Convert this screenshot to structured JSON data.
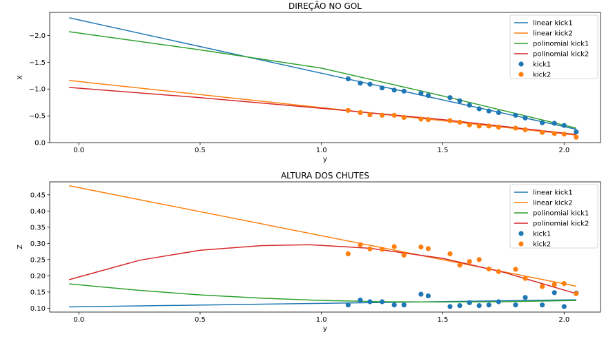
{
  "colors": {
    "linear_kick1": "#1f77b4",
    "linear_kick2": "#ff7f0e",
    "polinomial_kick1": "#2ca02c",
    "polinomial_kick2": "#d62728",
    "kick1": "#1f77b4",
    "kick2": "#ff7f0e"
  },
  "chart_data": [
    {
      "type": "line",
      "title": "DIREÇÃO NO GOL",
      "xlabel": "y",
      "ylabel": "X",
      "xlim": [
        -0.12,
        2.15
      ],
      "ylim": [
        0,
        -2.43
      ],
      "y_inverted": true,
      "xticks": [
        0.0,
        0.5,
        1.0,
        1.5,
        2.0
      ],
      "xtick_labels": [
        "0.0",
        "0.5",
        "1.0",
        "1.5",
        "2.0"
      ],
      "yticks": [
        0.0,
        -0.5,
        -1.0,
        -1.5,
        -2.0
      ],
      "ytick_labels": [
        "0.0",
        "−0.5",
        "−1.0",
        "−1.5",
        "−2.0"
      ],
      "legend_position": "top-right",
      "legend": [
        "linear kick1",
        "linear kick2",
        "polinomial kick1",
        "polinomial kick2",
        "kick1",
        "kick2"
      ],
      "series": [
        {
          "name": "linear kick1",
          "kind": "line",
          "color_key": "linear_kick1",
          "x": [
            -0.04,
            2.05
          ],
          "y": [
            -2.33,
            -0.25
          ]
        },
        {
          "name": "linear kick2",
          "kind": "line",
          "color_key": "linear_kick2",
          "x": [
            -0.04,
            2.05
          ],
          "y": [
            -1.16,
            -0.14
          ]
        },
        {
          "name": "polinomial kick1",
          "kind": "line",
          "color_key": "polinomial_kick1",
          "x": [
            -0.04,
            0.5,
            1.0,
            1.5,
            2.05
          ],
          "y": [
            -2.07,
            -1.73,
            -1.39,
            -0.87,
            -0.27
          ]
        },
        {
          "name": "polinomial kick2",
          "kind": "line",
          "color_key": "polinomial_kick2",
          "x": [
            -0.04,
            0.5,
            1.0,
            1.5,
            2.05
          ],
          "y": [
            -1.03,
            -0.84,
            -0.64,
            -0.43,
            -0.15
          ]
        },
        {
          "name": "kick1",
          "kind": "scatter",
          "color_key": "kick1",
          "x": [
            1.11,
            1.16,
            1.2,
            1.25,
            1.3,
            1.34,
            1.41,
            1.44,
            1.53,
            1.57,
            1.61,
            1.65,
            1.69,
            1.73,
            1.8,
            1.84,
            1.91,
            1.96,
            2.0,
            2.05
          ],
          "y": [
            -1.19,
            -1.11,
            -1.09,
            -1.02,
            -0.98,
            -0.96,
            -0.92,
            -0.88,
            -0.84,
            -0.78,
            -0.7,
            -0.63,
            -0.59,
            -0.56,
            -0.51,
            -0.46,
            -0.37,
            -0.36,
            -0.32,
            -0.2
          ]
        },
        {
          "name": "kick2",
          "kind": "scatter",
          "color_key": "kick2",
          "x": [
            1.11,
            1.16,
            1.2,
            1.25,
            1.3,
            1.34,
            1.41,
            1.44,
            1.53,
            1.57,
            1.61,
            1.65,
            1.69,
            1.73,
            1.8,
            1.84,
            1.91,
            1.96,
            2.0,
            2.05
          ],
          "y": [
            -0.6,
            -0.56,
            -0.52,
            -0.51,
            -0.51,
            -0.47,
            -0.44,
            -0.43,
            -0.41,
            -0.38,
            -0.33,
            -0.31,
            -0.31,
            -0.29,
            -0.27,
            -0.24,
            -0.19,
            -0.17,
            -0.16,
            -0.1
          ]
        }
      ]
    },
    {
      "type": "line",
      "title": "ALTURA DOS CHUTES",
      "xlabel": "y",
      "ylabel": "Z",
      "xlim": [
        -0.12,
        2.15
      ],
      "ylim": [
        0.088,
        0.49
      ],
      "y_inverted": false,
      "xticks": [
        0.0,
        0.5,
        1.0,
        1.5,
        2.0
      ],
      "xtick_labels": [
        "0.0",
        "0.5",
        "1.0",
        "1.5",
        "2.0"
      ],
      "yticks": [
        0.1,
        0.15,
        0.2,
        0.25,
        0.3,
        0.35,
        0.4,
        0.45
      ],
      "ytick_labels": [
        "0.10",
        "0.15",
        "0.20",
        "0.25",
        "0.30",
        "0.35",
        "0.40",
        "0.45"
      ],
      "legend_position": "top-right",
      "legend": [
        "linear kick1",
        "linear kick2",
        "polinomial kick1",
        "polinomial kick2",
        "kick1",
        "kick2"
      ],
      "series": [
        {
          "name": "linear kick1",
          "kind": "line",
          "color_key": "linear_kick1",
          "x": [
            -0.04,
            2.05
          ],
          "y": [
            0.104,
            0.126
          ]
        },
        {
          "name": "linear kick2",
          "kind": "line",
          "color_key": "linear_kick2",
          "x": [
            -0.04,
            2.05
          ],
          "y": [
            0.478,
            0.168
          ]
        },
        {
          "name": "polinomial kick1",
          "kind": "line",
          "color_key": "polinomial_kick1",
          "x": [
            -0.04,
            0.25,
            0.5,
            0.75,
            1.0,
            1.25,
            1.5,
            1.75,
            2.05
          ],
          "y": [
            0.175,
            0.155,
            0.141,
            0.131,
            0.124,
            0.12,
            0.119,
            0.12,
            0.124
          ]
        },
        {
          "name": "polinomial kick2",
          "kind": "line",
          "color_key": "polinomial_kick2",
          "x": [
            -0.04,
            0.25,
            0.5,
            0.75,
            0.95,
            1.2,
            1.5,
            1.75,
            2.05
          ],
          "y": [
            0.188,
            0.248,
            0.279,
            0.293,
            0.296,
            0.285,
            0.254,
            0.211,
            0.145
          ]
        },
        {
          "name": "kick1",
          "kind": "scatter",
          "color_key": "kick1",
          "x": [
            1.11,
            1.16,
            1.2,
            1.25,
            1.3,
            1.34,
            1.41,
            1.44,
            1.53,
            1.57,
            1.61,
            1.65,
            1.69,
            1.73,
            1.8,
            1.84,
            1.91,
            1.96,
            2.0,
            2.05
          ],
          "y": [
            0.11,
            0.125,
            0.12,
            0.12,
            0.11,
            0.11,
            0.143,
            0.138,
            0.105,
            0.108,
            0.117,
            0.108,
            0.11,
            0.12,
            0.11,
            0.133,
            0.11,
            0.148,
            0.105,
            0.147
          ]
        },
        {
          "name": "kick2",
          "kind": "scatter",
          "color_key": "kick2",
          "x": [
            1.11,
            1.16,
            1.2,
            1.25,
            1.3,
            1.34,
            1.41,
            1.44,
            1.53,
            1.57,
            1.61,
            1.65,
            1.69,
            1.73,
            1.8,
            1.84,
            1.91,
            1.96,
            2.0,
            2.05
          ],
          "y": [
            0.268,
            0.296,
            0.283,
            0.282,
            0.29,
            0.264,
            0.289,
            0.284,
            0.268,
            0.233,
            0.244,
            0.25,
            0.221,
            0.213,
            0.22,
            0.192,
            0.167,
            0.173,
            0.176,
            0.145
          ]
        }
      ]
    }
  ]
}
